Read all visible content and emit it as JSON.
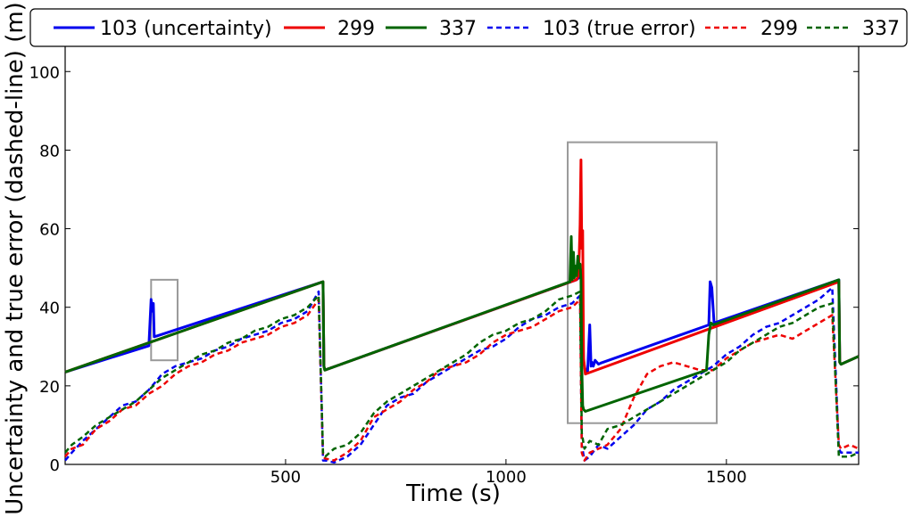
{
  "chart_data": {
    "type": "line",
    "title": "",
    "xlabel": "Time (s)",
    "ylabel": "Uncertainty and true error (dashed-line) (m)",
    "xlim": [
      0,
      1800
    ],
    "ylim": [
      0,
      108
    ],
    "xticks": [
      500,
      1000,
      1500
    ],
    "yticks": [
      0,
      20,
      40,
      60,
      80,
      100
    ],
    "grid": false,
    "legend_position": "top",
    "series": [
      {
        "name": "103 (uncertainty)",
        "color": "#0000ee",
        "dash": "solid",
        "x": [
          0,
          190,
          195,
          197,
          200,
          202,
          205,
          208,
          585,
          587,
          589,
          1160,
          1170,
          1172,
          1176,
          1180,
          1185,
          1190,
          1193,
          1195,
          1198,
          1202,
          1210,
          1215,
          1460,
          1463,
          1467,
          1472,
          1755,
          1757,
          1760,
          1800
        ],
        "y": [
          23.5,
          30.2,
          42,
          39,
          41,
          32.5,
          32.6,
          32.7,
          46.5,
          25,
          24,
          47,
          48,
          49.5,
          26,
          24,
          23.5,
          35.5,
          25,
          26,
          25,
          26.5,
          25.5,
          25.8,
          35.5,
          46.5,
          45,
          36,
          47,
          26,
          25.5,
          27.5
        ]
      },
      {
        "name": "299",
        "color": "#ee0000",
        "dash": "solid",
        "x": [
          0,
          585,
          587,
          589,
          1160,
          1164,
          1166,
          1168,
          1170,
          1172,
          1174,
          1176,
          1180,
          1755,
          1757,
          1760,
          1800
        ],
        "y": [
          23.5,
          46.5,
          25,
          24,
          47,
          48,
          53,
          61,
          77.5,
          55,
          59.5,
          27,
          23,
          46.5,
          26,
          25.5,
          27.5
        ]
      },
      {
        "name": "337",
        "color": "#006400",
        "dash": "solid",
        "x": [
          0,
          585,
          587,
          589,
          1145,
          1148,
          1150,
          1153,
          1155,
          1158,
          1160,
          1163,
          1165,
          1168,
          1170,
          1172,
          1174,
          1176,
          1180,
          1455,
          1460,
          1465,
          1470,
          1755,
          1757,
          1760,
          1800
        ],
        "y": [
          23.5,
          46.5,
          25,
          24,
          46.5,
          58,
          47,
          54,
          47.5,
          50.5,
          48,
          53,
          50,
          51,
          47,
          25,
          15,
          14,
          13.5,
          24,
          33,
          36,
          35.5,
          47,
          26,
          25.5,
          27.5
        ]
      },
      {
        "name": "103 (true error)",
        "color": "#0000ee",
        "dash": "dashed",
        "x": [
          0,
          15,
          40,
          70,
          100,
          130,
          160,
          190,
          220,
          250,
          280,
          310,
          340,
          370,
          400,
          430,
          460,
          490,
          520,
          550,
          575,
          585,
          590,
          610,
          640,
          670,
          700,
          730,
          760,
          790,
          820,
          850,
          880,
          910,
          940,
          970,
          1000,
          1030,
          1060,
          1090,
          1120,
          1150,
          1168,
          1172,
          1178,
          1190,
          1210,
          1230,
          1260,
          1290,
          1320,
          1350,
          1380,
          1410,
          1440,
          1470,
          1500,
          1530,
          1560,
          1590,
          1620,
          1650,
          1680,
          1710,
          1740,
          1755,
          1760,
          1780,
          1800
        ],
        "y": [
          1,
          3,
          6,
          9,
          12,
          15,
          16,
          19,
          23,
          25,
          26,
          27,
          29,
          30,
          32,
          33,
          34,
          36,
          37,
          39,
          44,
          1,
          1,
          0.5,
          2,
          5,
          10,
          15,
          17,
          18,
          21,
          23,
          25,
          27,
          29,
          30,
          32,
          35,
          37,
          38,
          40,
          41,
          43,
          5,
          1,
          2,
          5,
          4,
          7,
          10,
          14,
          16,
          19,
          21,
          23,
          25,
          28,
          30,
          33,
          35,
          36,
          38,
          40,
          42,
          45,
          4,
          3,
          3,
          3
        ]
      },
      {
        "name": "299",
        "color": "#ee0000",
        "dash": "dashed",
        "x": [
          0,
          15,
          40,
          70,
          100,
          130,
          160,
          190,
          220,
          250,
          280,
          310,
          340,
          370,
          400,
          430,
          460,
          490,
          520,
          550,
          575,
          585,
          590,
          610,
          640,
          670,
          700,
          730,
          760,
          790,
          820,
          850,
          880,
          910,
          940,
          970,
          1000,
          1030,
          1060,
          1090,
          1120,
          1150,
          1168,
          1172,
          1178,
          1190,
          1210,
          1230,
          1260,
          1290,
          1320,
          1350,
          1380,
          1410,
          1440,
          1470,
          1500,
          1530,
          1560,
          1590,
          1620,
          1650,
          1680,
          1710,
          1740,
          1755,
          1760,
          1780,
          1800
        ],
        "y": [
          2,
          4,
          5,
          9,
          11,
          14,
          15,
          18,
          20,
          23,
          25,
          26,
          28,
          29,
          31,
          32,
          33,
          35,
          36,
          38,
          42,
          2,
          1.5,
          1,
          3,
          6,
          12,
          14,
          16,
          19,
          21,
          24,
          25,
          26,
          28,
          31,
          33,
          34,
          35,
          37,
          39,
          40,
          42,
          3,
          1,
          3,
          4,
          5,
          9,
          17,
          23,
          25,
          26,
          25,
          24,
          24,
          27,
          29,
          31,
          32,
          33,
          32,
          34,
          36,
          38,
          5,
          4,
          5,
          4
        ]
      },
      {
        "name": "337",
        "color": "#006400",
        "dash": "dashed",
        "x": [
          0,
          15,
          40,
          70,
          100,
          130,
          160,
          190,
          220,
          250,
          280,
          310,
          340,
          370,
          400,
          430,
          460,
          490,
          520,
          550,
          575,
          585,
          590,
          610,
          640,
          670,
          700,
          730,
          760,
          790,
          820,
          850,
          880,
          910,
          940,
          970,
          1000,
          1030,
          1060,
          1090,
          1120,
          1150,
          1168,
          1172,
          1178,
          1190,
          1210,
          1230,
          1260,
          1290,
          1320,
          1350,
          1380,
          1410,
          1440,
          1470,
          1500,
          1530,
          1560,
          1590,
          1620,
          1650,
          1680,
          1710,
          1740,
          1755,
          1760,
          1780,
          1800
        ],
        "y": [
          3,
          5,
          7,
          10,
          12,
          14,
          16,
          19,
          22,
          24,
          26,
          28,
          29,
          31,
          32,
          34,
          35,
          37,
          38,
          40,
          43,
          3,
          2,
          4,
          5,
          8,
          13,
          16,
          18,
          20,
          22,
          24,
          26,
          28,
          31,
          33,
          34,
          36,
          37,
          39,
          42,
          43,
          44,
          8,
          4,
          6,
          5,
          9,
          10,
          12,
          14,
          16,
          18,
          20,
          22,
          24,
          26,
          29,
          31,
          33,
          35,
          36,
          38,
          40,
          41,
          2,
          2,
          2,
          3
        ]
      }
    ],
    "annotations": [
      {
        "type": "rect",
        "x": [
          195,
          255
        ],
        "y": [
          26.5,
          47
        ],
        "color": "#999999"
      },
      {
        "type": "rect",
        "x": [
          1140,
          1478
        ],
        "y": [
          10.5,
          82
        ],
        "color": "#999999"
      }
    ]
  }
}
